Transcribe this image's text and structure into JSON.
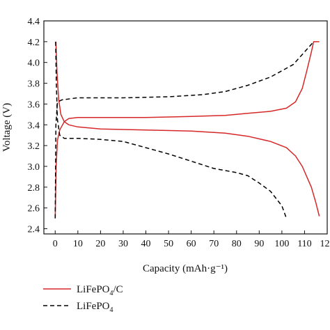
{
  "chart_data": {
    "type": "line",
    "title": "",
    "xlabel": "Capacity (mAh·g⁻¹)",
    "ylabel": "Voltage (V)",
    "xlim": [
      -5,
      120
    ],
    "ylim": [
      2.35,
      4.4
    ],
    "xticks": [
      "0",
      "10",
      "20",
      "30",
      "40",
      "50",
      "60",
      "70",
      "80",
      "90",
      "100",
      "110",
      "120"
    ],
    "yticks": [
      "2.4",
      "2.6",
      "2.8",
      "3.0",
      "3.2",
      "3.4",
      "3.6",
      "3.8",
      "4.0",
      "4.2",
      "4.4"
    ],
    "grid": false,
    "legend_position": "below plot",
    "series": [
      {
        "name": "LiFePO4/C",
        "label_main": "LiFePO",
        "label_sub": "4",
        "label_tail": "/C",
        "color": "#d62728",
        "dash": "solid",
        "segments": [
          [
            [
              0.3,
              4.2
            ],
            [
              0.8,
              3.9
            ],
            [
              1.5,
              3.65
            ],
            [
              2.5,
              3.5
            ],
            [
              4,
              3.43
            ],
            [
              6,
              3.4
            ],
            [
              10,
              3.38
            ],
            [
              20,
              3.36
            ],
            [
              40,
              3.35
            ],
            [
              60,
              3.34
            ],
            [
              75,
              3.32
            ],
            [
              85,
              3.29
            ],
            [
              95,
              3.24
            ],
            [
              102,
              3.18
            ],
            [
              106,
              3.1
            ],
            [
              109,
              3.0
            ],
            [
              111,
              2.9
            ],
            [
              113,
              2.8
            ],
            [
              115,
              2.65
            ],
            [
              116.5,
              2.52
            ]
          ],
          [
            [
              0,
              2.5
            ],
            [
              0.4,
              3.0
            ],
            [
              1,
              3.25
            ],
            [
              2,
              3.35
            ],
            [
              4,
              3.43
            ],
            [
              6,
              3.46
            ],
            [
              10,
              3.47
            ],
            [
              20,
              3.47
            ],
            [
              40,
              3.47
            ],
            [
              60,
              3.48
            ],
            [
              75,
              3.49
            ],
            [
              85,
              3.51
            ],
            [
              95,
              3.53
            ],
            [
              102,
              3.56
            ],
            [
              106,
              3.62
            ],
            [
              109,
              3.75
            ],
            [
              111,
              3.92
            ],
            [
              113,
              4.1
            ],
            [
              114,
              4.2
            ],
            [
              116.5,
              4.2
            ]
          ]
        ]
      },
      {
        "name": "LiFePO4",
        "label_main": "LiFePO",
        "label_sub": "4",
        "label_tail": "",
        "color": "#000000",
        "dash": "dashed",
        "segments": [
          [
            [
              0.2,
              4.2
            ],
            [
              0.5,
              3.8
            ],
            [
              1,
              3.45
            ],
            [
              2,
              3.3
            ],
            [
              4,
              3.27
            ],
            [
              10,
              3.27
            ],
            [
              20,
              3.26
            ],
            [
              30,
              3.24
            ],
            [
              40,
              3.18
            ],
            [
              50,
              3.12
            ],
            [
              60,
              3.05
            ],
            [
              70,
              2.98
            ],
            [
              80,
              2.94
            ],
            [
              85,
              2.91
            ],
            [
              90,
              2.84
            ],
            [
              95,
              2.76
            ],
            [
              100,
              2.62
            ],
            [
              102,
              2.5
            ]
          ],
          [
            [
              0,
              2.5
            ],
            [
              0.3,
              3.4
            ],
            [
              1,
              3.62
            ],
            [
              3,
              3.64
            ],
            [
              10,
              3.66
            ],
            [
              30,
              3.66
            ],
            [
              50,
              3.67
            ],
            [
              65,
              3.69
            ],
            [
              75,
              3.72
            ],
            [
              85,
              3.78
            ],
            [
              95,
              3.86
            ],
            [
              105,
              3.98
            ],
            [
              112,
              4.15
            ],
            [
              114,
              4.2
            ]
          ]
        ]
      }
    ]
  }
}
